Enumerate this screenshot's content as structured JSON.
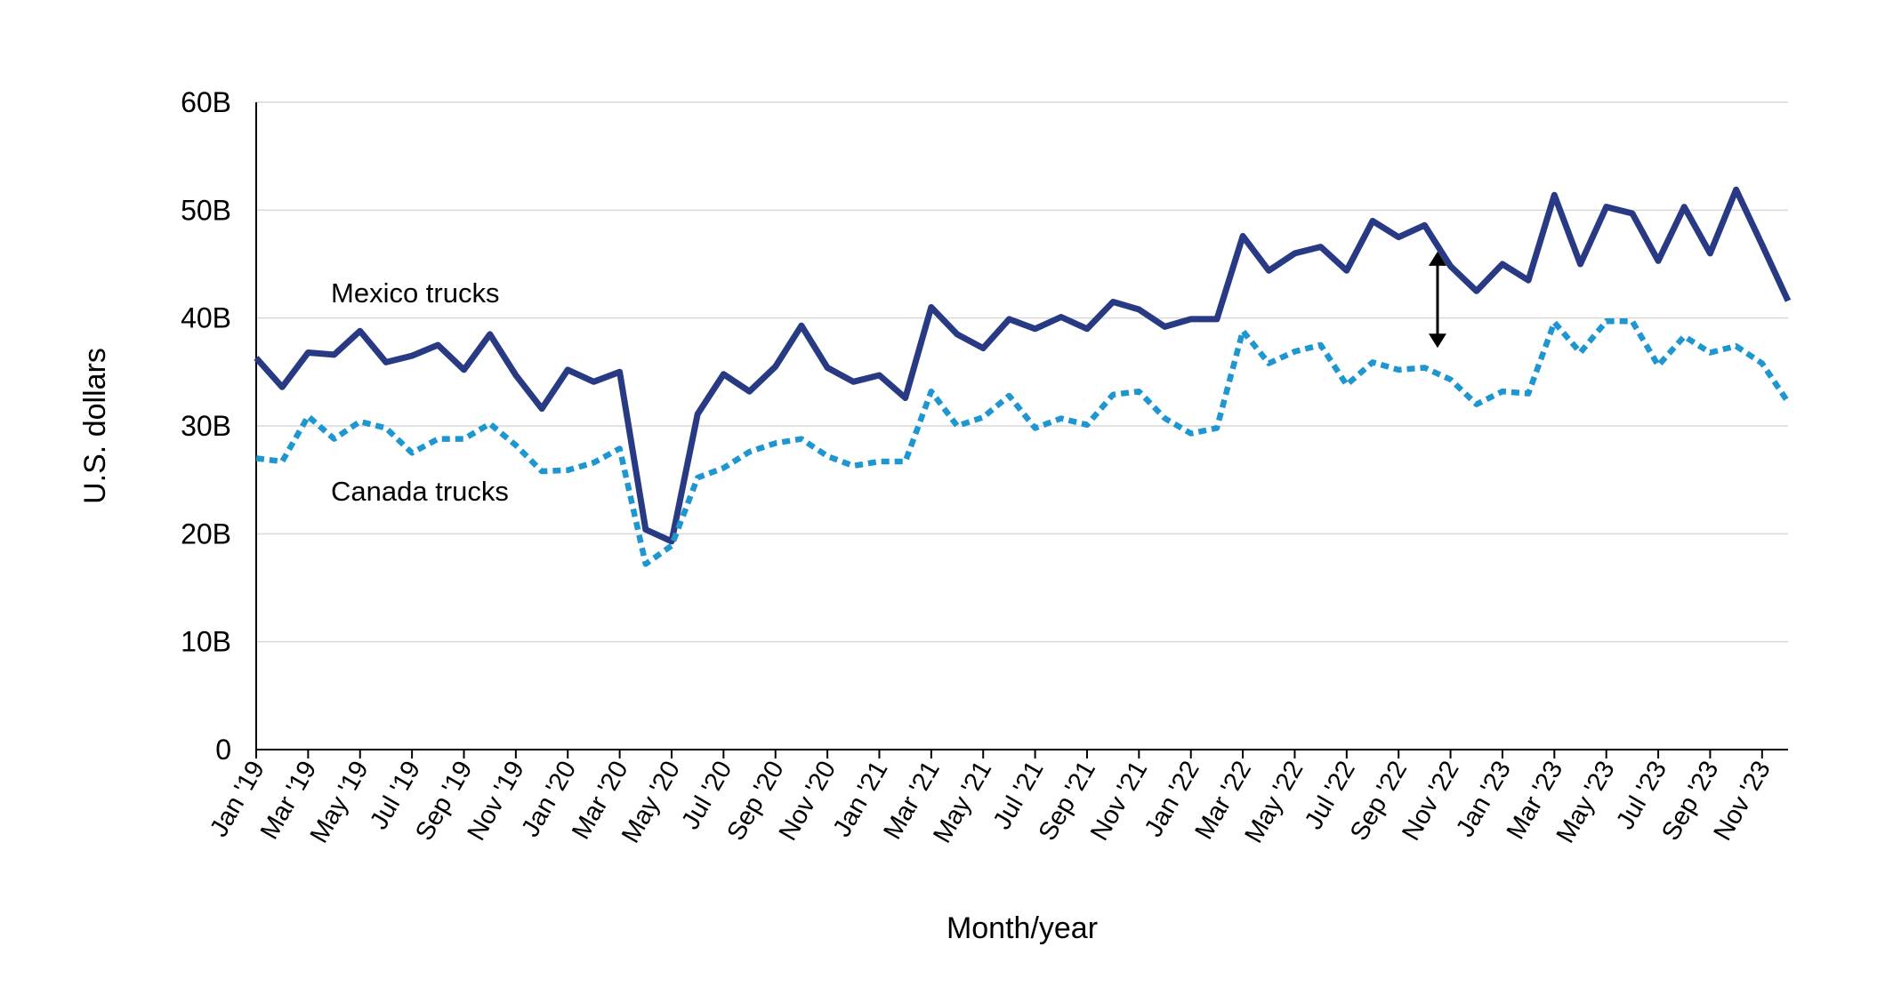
{
  "chart_data": {
    "type": "line",
    "xlabel": "Month/year",
    "ylabel": "U.S. dollars",
    "ylim": [
      0,
      60
    ],
    "y_ticks": [
      0,
      10,
      20,
      30,
      40,
      50,
      60
    ],
    "y_tick_labels": [
      "0",
      "10B",
      "20B",
      "30B",
      "40B",
      "50B",
      "60B"
    ],
    "grid": "horizontal",
    "x": [
      "Jan '19",
      "Feb '19",
      "Mar '19",
      "Apr '19",
      "May '19",
      "Jun '19",
      "Jul '19",
      "Aug '19",
      "Sep '19",
      "Oct '19",
      "Nov '19",
      "Dec '19",
      "Jan '20",
      "Feb '20",
      "Mar '20",
      "Apr '20",
      "May '20",
      "Jun '20",
      "Jul '20",
      "Aug '20",
      "Sep '20",
      "Oct '20",
      "Nov '20",
      "Dec '20",
      "Jan '21",
      "Feb '21",
      "Mar '21",
      "Apr '21",
      "May '21",
      "Jun '21",
      "Jul '21",
      "Aug '21",
      "Sep '21",
      "Oct '21",
      "Nov '21",
      "Dec '21",
      "Jan '22",
      "Feb '22",
      "Mar '22",
      "Apr '22",
      "May '22",
      "Jun '22",
      "Jul '22",
      "Aug '22",
      "Sep '22",
      "Oct '22",
      "Nov '22",
      "Dec '22",
      "Jan '23",
      "Feb '23",
      "Mar '23",
      "Apr '23",
      "May '23",
      "Jun '23",
      "Jul '23",
      "Aug '23",
      "Sep '23",
      "Oct '23",
      "Nov '23",
      "Dec '23"
    ],
    "x_tick_labels": [
      "Jan '19",
      "Mar '19",
      "May '19",
      "Jul '19",
      "Sep '19",
      "Nov '19",
      "Jan '20",
      "Mar '20",
      "May '20",
      "Jul '20",
      "Sep '20",
      "Nov '20",
      "Jan '21",
      "Mar '21",
      "May '21",
      "Jul '21",
      "Sep '21",
      "Nov '21",
      "Jan '22",
      "Mar '22",
      "May '22",
      "Jul '22",
      "Sep '22",
      "Nov '22",
      "Jan '23",
      "Mar '23",
      "May '23",
      "Jul '23",
      "Sep '23",
      "Nov '23"
    ],
    "series": [
      {
        "name": "Mexico trucks",
        "color": "#283A83",
        "style": "solid",
        "values": [
          36.3,
          33.6,
          36.8,
          36.6,
          38.8,
          35.9,
          36.5,
          37.5,
          35.2,
          38.5,
          34.7,
          31.6,
          35.2,
          34.1,
          35.0,
          20.4,
          19.3,
          31.1,
          34.8,
          33.2,
          35.5,
          39.3,
          35.4,
          34.1,
          34.7,
          32.6,
          41.0,
          38.5,
          37.2,
          39.9,
          39.0,
          40.1,
          39.0,
          41.5,
          40.8,
          39.2,
          39.9,
          39.9,
          47.6,
          44.4,
          46.0,
          46.6,
          44.4,
          49.0,
          47.5,
          48.6,
          44.8,
          42.5,
          45.0,
          43.5,
          51.4,
          45.0,
          50.3,
          49.7,
          45.3,
          50.3,
          46.0,
          51.9,
          46.8,
          41.6
        ]
      },
      {
        "name": "Canada trucks",
        "color": "#1E96D0",
        "style": "dotted",
        "values": [
          27.0,
          26.7,
          30.9,
          28.8,
          30.4,
          29.8,
          27.5,
          28.8,
          28.8,
          30.2,
          28.2,
          25.8,
          25.9,
          26.6,
          27.9,
          17.2,
          18.9,
          25.2,
          26.1,
          27.6,
          28.4,
          28.8,
          27.2,
          26.3,
          26.7,
          26.7,
          33.2,
          30.0,
          30.8,
          32.8,
          29.8,
          30.7,
          30.1,
          32.9,
          33.2,
          30.7,
          29.3,
          29.8,
          38.8,
          35.8,
          36.9,
          37.5,
          33.8,
          35.9,
          35.2,
          35.4,
          34.3,
          32.0,
          33.2,
          33.0,
          39.6,
          36.8,
          39.7,
          39.7,
          35.6,
          38.3,
          36.8,
          37.4,
          35.8,
          32.2
        ]
      }
    ],
    "annotations": [
      {
        "type": "double-arrow",
        "x": "Oct '22",
        "y_from": 37.4,
        "y_to": 46.0
      }
    ]
  }
}
